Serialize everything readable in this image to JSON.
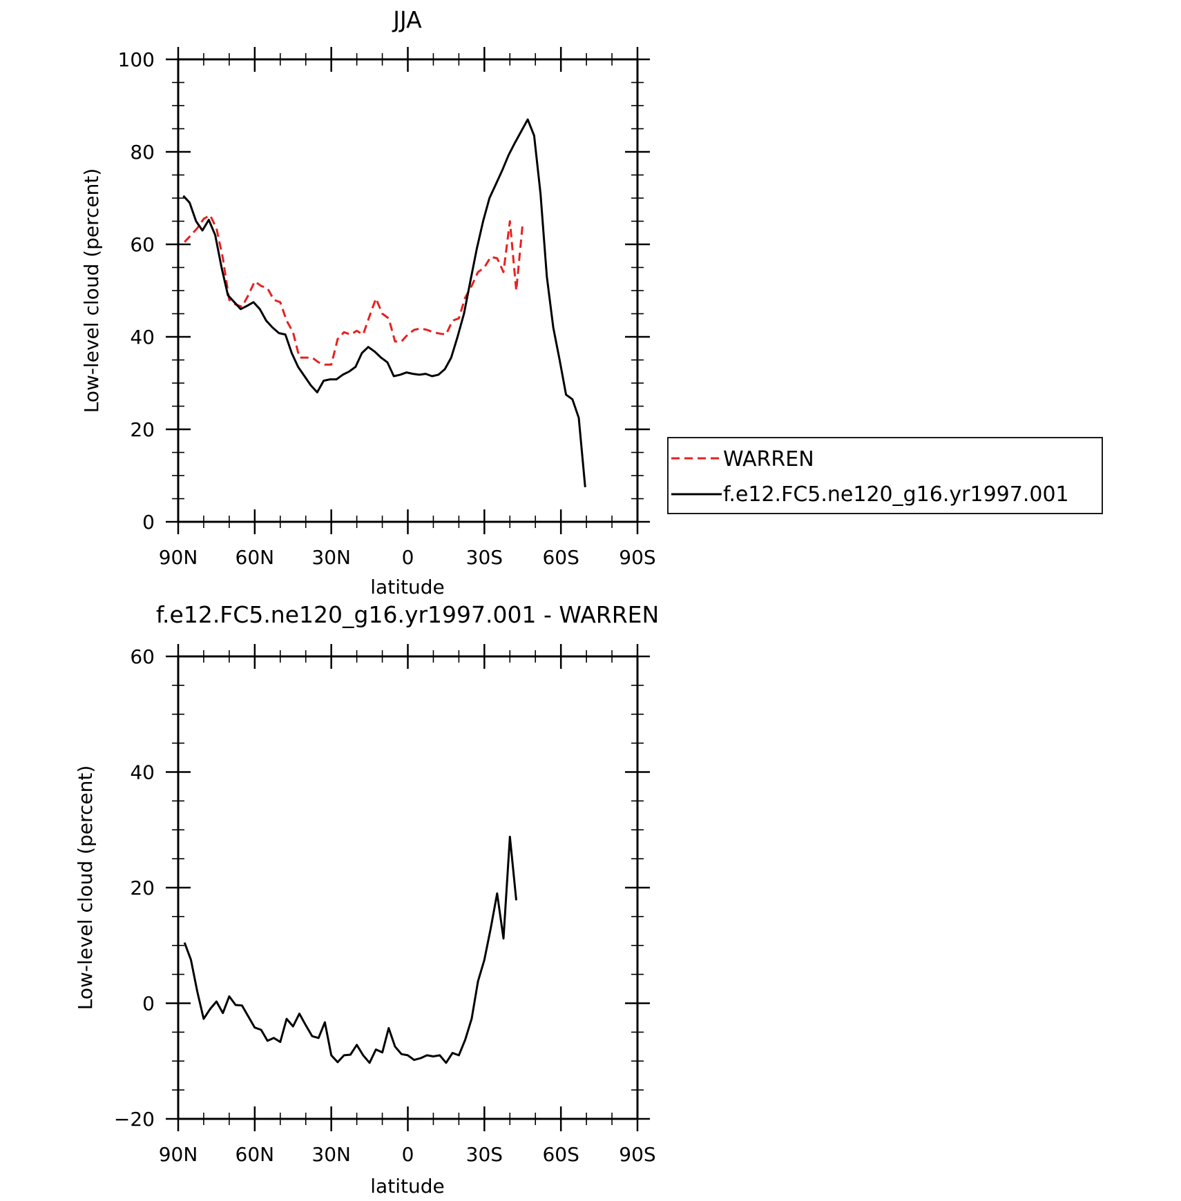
{
  "chart_data": [
    {
      "type": "line",
      "title": "JJA",
      "xlabel": "latitude",
      "ylabel": "Low-level cloud (percent)",
      "xlim": [
        90,
        -90
      ],
      "ylim": [
        0,
        100
      ],
      "xticks": [
        {
          "value": 90,
          "label": "90N"
        },
        {
          "value": 60,
          "label": "60N"
        },
        {
          "value": 30,
          "label": "30N"
        },
        {
          "value": 0,
          "label": "0"
        },
        {
          "value": -30,
          "label": "30S"
        },
        {
          "value": -60,
          "label": "60S"
        },
        {
          "value": -90,
          "label": "90S"
        }
      ],
      "yticks": [
        {
          "value": 0,
          "label": "0"
        },
        {
          "value": 20,
          "label": "20"
        },
        {
          "value": 40,
          "label": "40"
        },
        {
          "value": 60,
          "label": "60"
        },
        {
          "value": 80,
          "label": "80"
        },
        {
          "value": 100,
          "label": "100"
        }
      ],
      "legend_position": "right",
      "series": [
        {
          "name": "WARREN",
          "color": "#e8201f",
          "dash": "dashed",
          "points": [
            [
              87.5,
              60.5
            ],
            [
              85,
              62
            ],
            [
              82.5,
              63.5
            ],
            [
              80,
              65.5
            ],
            [
              77.5,
              66.3
            ],
            [
              75,
              63.5
            ],
            [
              72.5,
              57
            ],
            [
              70,
              48
            ],
            [
              67.5,
              47
            ],
            [
              65,
              46.5
            ],
            [
              62.5,
              49
            ],
            [
              60,
              52
            ],
            [
              57.5,
              51
            ],
            [
              55,
              50.5
            ],
            [
              52.5,
              48
            ],
            [
              50,
              47.5
            ],
            [
              47.5,
              43.5
            ],
            [
              45,
              41
            ],
            [
              42.5,
              35.5
            ],
            [
              40,
              35.5
            ],
            [
              37.5,
              35.5
            ],
            [
              35,
              34.5
            ],
            [
              32.5,
              34
            ],
            [
              30,
              34
            ],
            [
              27.5,
              39.5
            ],
            [
              25,
              41
            ],
            [
              22.5,
              40.5
            ],
            [
              20,
              41.3
            ],
            [
              17.5,
              40.5
            ],
            [
              15,
              44.5
            ],
            [
              12.5,
              48.3
            ],
            [
              10,
              45
            ],
            [
              7.5,
              44
            ],
            [
              5,
              39
            ],
            [
              2.5,
              39
            ],
            [
              0,
              40.5
            ],
            [
              -2.5,
              41.5
            ],
            [
              -5,
              41.8
            ],
            [
              -7.5,
              41.5
            ],
            [
              -10,
              41
            ],
            [
              -12.5,
              40.7
            ],
            [
              -15,
              40.5
            ],
            [
              -17.5,
              43.5
            ],
            [
              -20,
              44
            ],
            [
              -22.5,
              48.5
            ],
            [
              -25,
              51
            ],
            [
              -27.5,
              54
            ],
            [
              -30,
              55
            ],
            [
              -32.5,
              57.3
            ],
            [
              -35,
              57
            ],
            [
              -37.5,
              54
            ],
            [
              -40,
              65
            ],
            [
              -42.5,
              50
            ],
            [
              -45,
              64.5
            ]
          ]
        },
        {
          "name": "f.e12.FC5.ne120_g16.yr1997.001",
          "color": "#000000",
          "dash": "solid",
          "points": [
            [
              88,
              70.5
            ],
            [
              85.5,
              69
            ],
            [
              83,
              65
            ],
            [
              80.5,
              63
            ],
            [
              78,
              65.3
            ],
            [
              75.5,
              62
            ],
            [
              73,
              55
            ],
            [
              70.5,
              49
            ],
            [
              68,
              47.5
            ],
            [
              65.5,
              46
            ],
            [
              63,
              46.7
            ],
            [
              60.5,
              47.5
            ],
            [
              58,
              46
            ],
            [
              55.5,
              43.5
            ],
            [
              53,
              42
            ],
            [
              50.5,
              40.8
            ],
            [
              48,
              40.5
            ],
            [
              45.5,
              36.5
            ],
            [
              43,
              33.5
            ],
            [
              40.5,
              31.5
            ],
            [
              38,
              29.5
            ],
            [
              35.5,
              28
            ],
            [
              33,
              30.5
            ],
            [
              30.5,
              30.8
            ],
            [
              28,
              30.8
            ],
            [
              25.5,
              31.8
            ],
            [
              23,
              32.5
            ],
            [
              20.5,
              33.5
            ],
            [
              18,
              36.5
            ],
            [
              15.5,
              37.8
            ],
            [
              13,
              36.8
            ],
            [
              10.5,
              35.5
            ],
            [
              8,
              34.5
            ],
            [
              5.5,
              31.5
            ],
            [
              3,
              31.8
            ],
            [
              0.5,
              32.3
            ],
            [
              -2,
              32
            ],
            [
              -4.5,
              31.8
            ],
            [
              -7,
              32
            ],
            [
              -9.5,
              31.5
            ],
            [
              -12,
              31.8
            ],
            [
              -14.5,
              33
            ],
            [
              -17,
              35.5
            ],
            [
              -19.5,
              40
            ],
            [
              -22,
              45
            ],
            [
              -24.5,
              52
            ],
            [
              -27,
              59
            ],
            [
              -29.5,
              65
            ],
            [
              -32,
              70
            ],
            [
              -34.5,
              73
            ],
            [
              -37,
              76
            ],
            [
              -39.5,
              79.3
            ],
            [
              -42,
              82
            ],
            [
              -44.5,
              84.5
            ],
            [
              -47,
              87
            ],
            [
              -49.5,
              83.5
            ],
            [
              -52,
              71
            ],
            [
              -54.5,
              53
            ],
            [
              -57,
              42
            ],
            [
              -59.5,
              35
            ],
            [
              -62,
              27.5
            ],
            [
              -64.5,
              26.5
            ],
            [
              -67,
              22.5
            ],
            [
              -69.5,
              7.5
            ]
          ]
        }
      ]
    },
    {
      "type": "line",
      "title": "f.e12.FC5.ne120_g16.yr1997.001 - WARREN",
      "xlabel": "latitude",
      "ylabel": "Low-level cloud (percent)",
      "xlim": [
        90,
        -90
      ],
      "ylim": [
        -20,
        60
      ],
      "xticks": [
        {
          "value": 90,
          "label": "90N"
        },
        {
          "value": 60,
          "label": "60N"
        },
        {
          "value": 30,
          "label": "30N"
        },
        {
          "value": 0,
          "label": "0"
        },
        {
          "value": -30,
          "label": "30S"
        },
        {
          "value": -60,
          "label": "60S"
        },
        {
          "value": -90,
          "label": "90S"
        }
      ],
      "yticks": [
        {
          "value": -20,
          "label": "−20"
        },
        {
          "value": 0,
          "label": "0"
        },
        {
          "value": 20,
          "label": "20"
        },
        {
          "value": 40,
          "label": "40"
        },
        {
          "value": 60,
          "label": "60"
        }
      ],
      "series": [
        {
          "color": "#000000",
          "dash": "solid",
          "points": [
            [
              87.5,
              10.5
            ],
            [
              85,
              7.5
            ],
            [
              82.5,
              2
            ],
            [
              80,
              -2.7
            ],
            [
              77.5,
              -1
            ],
            [
              75,
              0.3
            ],
            [
              72.5,
              -1.7
            ],
            [
              70,
              1.2
            ],
            [
              67.5,
              -0.3
            ],
            [
              65,
              -0.4
            ],
            [
              62.5,
              -2.3
            ],
            [
              60,
              -4.2
            ],
            [
              57.5,
              -4.6
            ],
            [
              55,
              -6.5
            ],
            [
              52.5,
              -6
            ],
            [
              50,
              -6.7
            ],
            [
              47.5,
              -2.7
            ],
            [
              45,
              -4
            ],
            [
              42.5,
              -1.8
            ],
            [
              40,
              -3.8
            ],
            [
              37.5,
              -5.7
            ],
            [
              35,
              -6
            ],
            [
              32.5,
              -3.3
            ],
            [
              30,
              -9
            ],
            [
              27.5,
              -10.2
            ],
            [
              25,
              -9
            ],
            [
              22.5,
              -8.9
            ],
            [
              20,
              -7.2
            ],
            [
              17.5,
              -9
            ],
            [
              15,
              -10.3
            ],
            [
              12.5,
              -8
            ],
            [
              10,
              -8.5
            ],
            [
              7.5,
              -4.3
            ],
            [
              5,
              -7.5
            ],
            [
              2.5,
              -8.8
            ],
            [
              0,
              -9
            ],
            [
              -2.5,
              -9.8
            ],
            [
              -5,
              -9.5
            ],
            [
              -7.5,
              -9
            ],
            [
              -10,
              -9.2
            ],
            [
              -12.5,
              -9
            ],
            [
              -15,
              -10.3
            ],
            [
              -17.5,
              -8.6
            ],
            [
              -20,
              -9
            ],
            [
              -22.5,
              -6.3
            ],
            [
              -25,
              -2.7
            ],
            [
              -27.5,
              3.8
            ],
            [
              -30,
              7.5
            ],
            [
              -32.5,
              13
            ],
            [
              -35,
              19
            ],
            [
              -37.5,
              11.2
            ],
            [
              -40,
              28.8
            ],
            [
              -42.5,
              17.8
            ]
          ]
        }
      ]
    }
  ]
}
